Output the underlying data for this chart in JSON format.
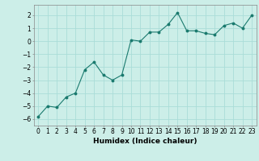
{
  "x": [
    0,
    1,
    2,
    3,
    4,
    5,
    6,
    7,
    8,
    9,
    10,
    11,
    12,
    13,
    14,
    15,
    16,
    17,
    18,
    19,
    20,
    21,
    22,
    23
  ],
  "y": [
    -5.8,
    -5.0,
    -5.1,
    -4.3,
    -4.0,
    -2.2,
    -1.6,
    -2.6,
    -3.0,
    -2.6,
    0.1,
    0.0,
    0.7,
    0.7,
    1.3,
    2.2,
    0.8,
    0.8,
    0.6,
    0.5,
    1.2,
    1.4,
    1.0,
    2.0
  ],
  "line_color": "#1a7a6e",
  "marker": "o",
  "markersize": 1.8,
  "linewidth": 0.8,
  "xlabel": "Humidex (Indice chaleur)",
  "xlabel_fontsize": 6.5,
  "xlabel_fontweight": "bold",
  "ylabel_ticks": [
    2,
    1,
    0,
    -1,
    -2,
    -3,
    -4,
    -5,
    -6
  ],
  "ylim": [
    -6.5,
    2.8
  ],
  "xlim": [
    -0.5,
    23.5
  ],
  "bg_color": "#cceee8",
  "grid_color": "#aaddd8",
  "tick_fontsize": 5.5,
  "xtick_labels": [
    "0",
    "1",
    "2",
    "3",
    "4",
    "5",
    "6",
    "7",
    "8",
    "9",
    "10",
    "11",
    "12",
    "13",
    "14",
    "15",
    "16",
    "17",
    "18",
    "19",
    "20",
    "21",
    "22",
    "23"
  ]
}
